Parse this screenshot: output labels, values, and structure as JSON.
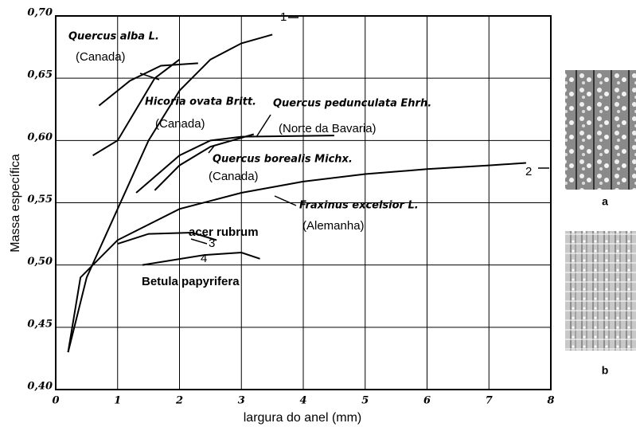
{
  "chart_data": {
    "type": "line",
    "xlabel": "largura do anel (mm)",
    "ylabel": "Massa específica",
    "xlim": [
      0,
      8
    ],
    "ylim": [
      0.4,
      0.7
    ],
    "xticks": [
      0,
      1,
      2,
      3,
      4,
      5,
      6,
      7,
      8
    ],
    "yticks": [
      {
        "value": 0.4,
        "label": "0,40"
      },
      {
        "value": 0.45,
        "label": "0,45"
      },
      {
        "value": 0.5,
        "label": "0,50"
      },
      {
        "value": 0.55,
        "label": "0,55"
      },
      {
        "value": 0.6,
        "label": "0,60"
      },
      {
        "value": 0.65,
        "label": "0,65"
      },
      {
        "value": 0.7,
        "label": "0,70"
      }
    ],
    "grid": true,
    "color": "#000000",
    "series": [
      {
        "tag": "1",
        "x": [
          0.2,
          0.5,
          1,
          1.5,
          2,
          2.5,
          3,
          3.5
        ],
        "values": [
          0.43,
          0.49,
          0.545,
          0.6,
          0.64,
          0.665,
          0.678,
          0.685
        ]
      },
      {
        "tag": "2",
        "name": "Fraxinus excelsior L.",
        "note": "(Alemanha)",
        "x": [
          0.2,
          0.4,
          1,
          2,
          3,
          4,
          5,
          6,
          7,
          7.6
        ],
        "values": [
          0.43,
          0.49,
          0.52,
          0.545,
          0.558,
          0.567,
          0.573,
          0.577,
          0.58,
          0.582
        ]
      },
      {
        "tag": "3",
        "name": "acer rubrum",
        "x": [
          1,
          1.5,
          2.2,
          2.6
        ],
        "values": [
          0.517,
          0.525,
          0.526,
          0.52
        ]
      },
      {
        "tag": "4",
        "name": "Betula papyrifera",
        "x": [
          1.4,
          2.4,
          3,
          3.3
        ],
        "values": [
          0.5,
          0.508,
          0.51,
          0.505
        ]
      },
      {
        "name": "Quercus alba L.",
        "note": "(Canada)",
        "x": [
          0.7,
          1.2,
          1.7,
          2.3
        ],
        "values": [
          0.628,
          0.648,
          0.66,
          0.662
        ]
      },
      {
        "name": "Hicoria ovata Britt.",
        "note": "(Canada)",
        "x": [
          0.6,
          1,
          1.3,
          1.6,
          2
        ],
        "values": [
          0.588,
          0.6,
          0.625,
          0.65,
          0.665
        ]
      },
      {
        "name": "Quercus pedunculata Ehrh.",
        "note": "(Norte da Bavaria)",
        "x": [
          1.3,
          2,
          2.5,
          3,
          4.5
        ],
        "values": [
          0.558,
          0.588,
          0.6,
          0.603,
          0.604
        ]
      },
      {
        "name": "Quercus borealis Michx.",
        "note": "(Canada)",
        "x": [
          1.6,
          2,
          2.5,
          3.2
        ],
        "values": [
          0.56,
          0.58,
          0.595,
          0.605
        ]
      }
    ],
    "panels": [
      {
        "label": "a"
      },
      {
        "label": "b"
      }
    ]
  }
}
